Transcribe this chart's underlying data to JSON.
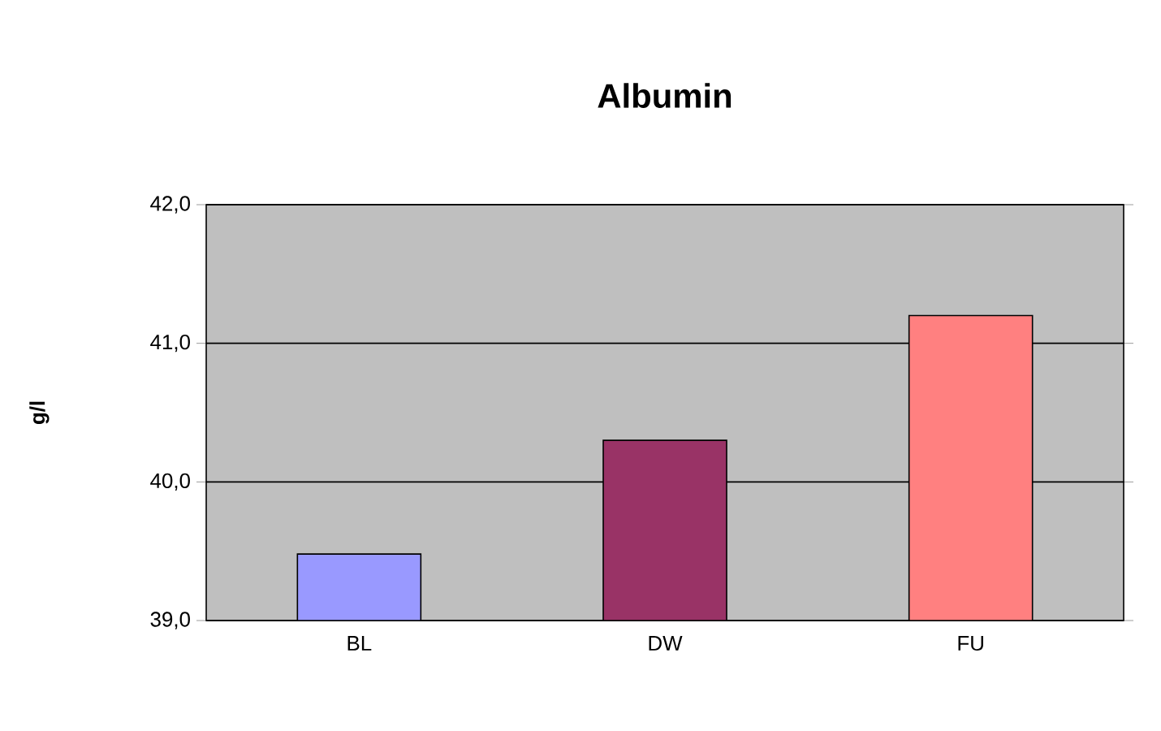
{
  "chart_data": {
    "type": "bar",
    "title": "Albumin",
    "ylabel": "g/l",
    "categories": [
      "BL",
      "DW",
      "FU"
    ],
    "values": [
      39.48,
      40.3,
      41.2
    ],
    "colors": [
      "#9999ff",
      "#993366",
      "#ff8080"
    ],
    "ylim": [
      39,
      42
    ],
    "yticks": [
      {
        "value": 39,
        "label": "39,0"
      },
      {
        "value": 40,
        "label": "40,0"
      },
      {
        "value": 41,
        "label": "41,0"
      },
      {
        "value": 42,
        "label": "42,0"
      }
    ],
    "grid": "y"
  }
}
